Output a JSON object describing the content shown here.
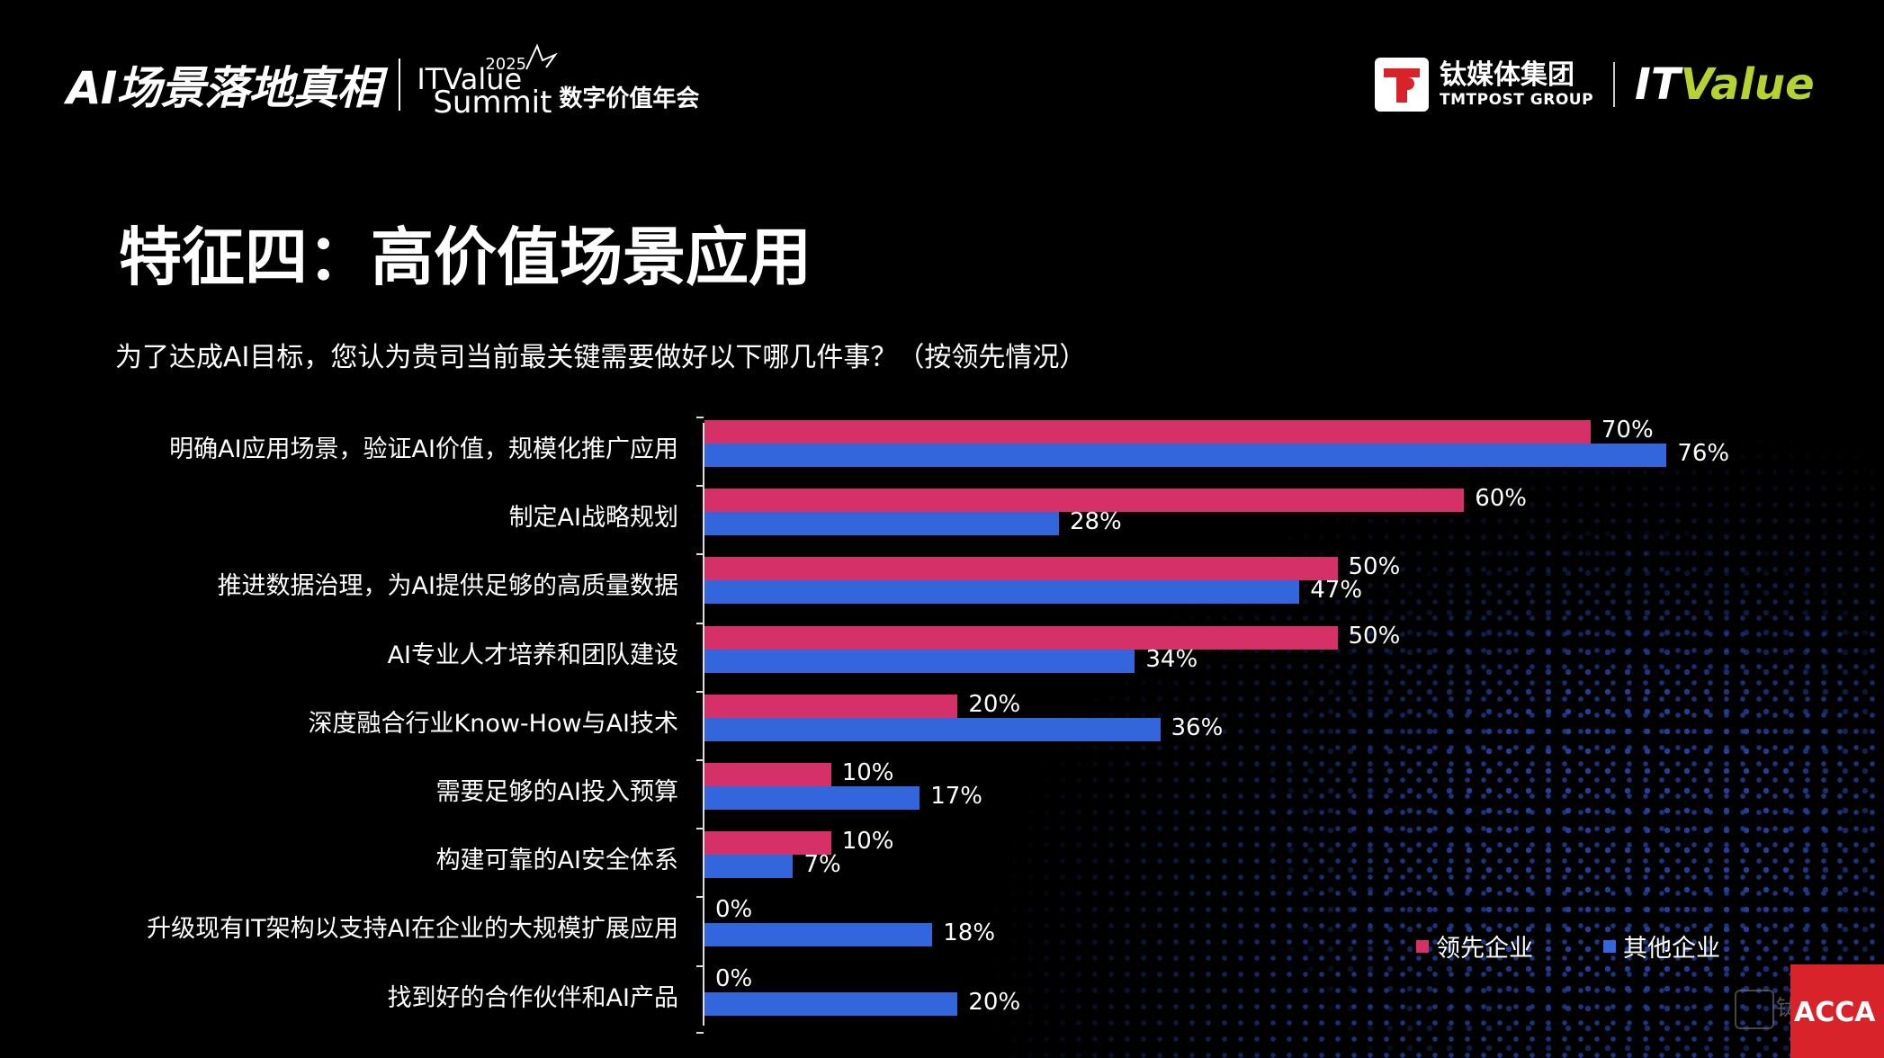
{
  "header": {
    "event_logo": "AI场景落地真相",
    "summit_year": "2025",
    "summit_name_line1": "ITValue",
    "summit_name_line2": "Summit",
    "summit_subtitle": "数字价值年会",
    "org_cn": "钛媒体集团",
    "org_en": "TMTPOST GROUP",
    "brand_it": "IT",
    "brand_value": "Value"
  },
  "slide": {
    "title": "特征四：高价值场景应用",
    "question": "为了达成AI目标，您认为贵司当前最关键需要做好以下哪几件事？（按领先情况）"
  },
  "chart_data": {
    "type": "bar",
    "orientation": "horizontal",
    "categories": [
      "明确AI应用场景，验证AI价值，规模化推广应用",
      "制定AI战略规划",
      "推进数据治理，为AI提供足够的高质量数据",
      "AI专业人才培养和团队建设",
      "深度融合行业Know-How与AI技术",
      "需要足够的AI投入预算",
      "构建可靠的AI安全体系",
      "升级现有IT架构以支持AI在企业的大规模扩展应用",
      "找到好的合作伙伴和AI产品"
    ],
    "series": [
      {
        "name": "领先企业",
        "color": "#d63068",
        "values": [
          70,
          60,
          50,
          50,
          20,
          10,
          10,
          0,
          0
        ],
        "labels": [
          "70%",
          "60%",
          "50%",
          "50%",
          "20%",
          "10%",
          "10%",
          "0%",
          "0%"
        ]
      },
      {
        "name": "其他企业",
        "color": "#3366dd",
        "values": [
          76,
          28,
          47,
          34,
          36,
          17,
          7,
          18,
          20
        ],
        "labels": [
          "76%",
          "28%",
          "47%",
          "34%",
          "36%",
          "17%",
          "7%",
          "18%",
          "20%"
        ]
      }
    ],
    "xlim": [
      0,
      100
    ],
    "legend_position": "bottom-right",
    "grid": false
  },
  "footer": {
    "watermark": "钛媒体",
    "corner_brand": "ACCA"
  }
}
